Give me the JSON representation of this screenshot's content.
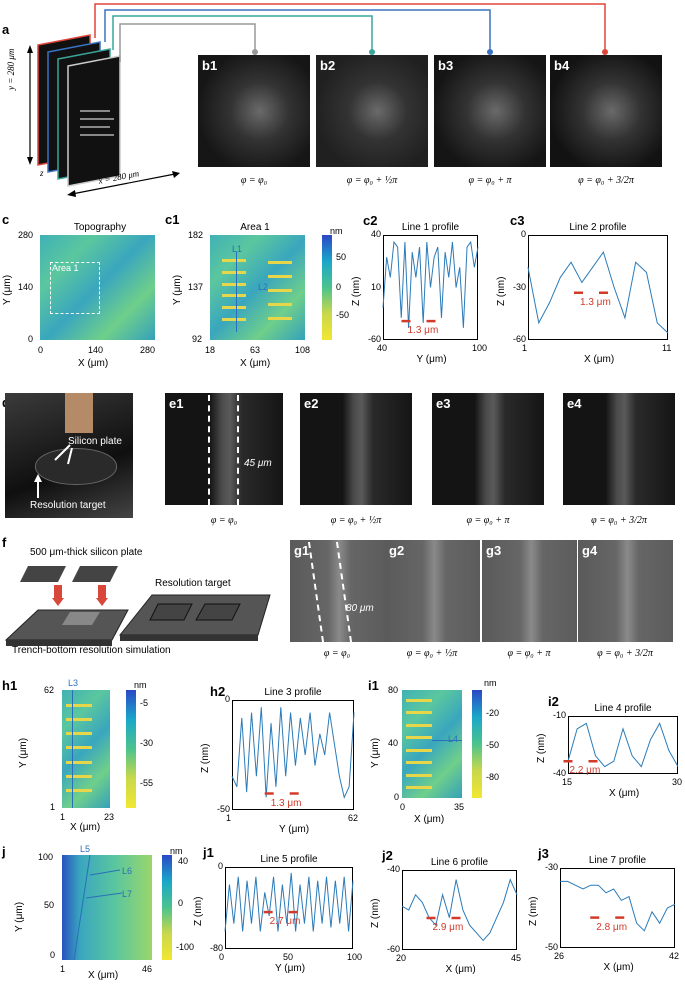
{
  "panels": {
    "a": {
      "label": "a",
      "y_dim": "y = 280 μm",
      "x_dim": "x = 280 μm",
      "z": "z"
    },
    "b": {
      "labels": [
        "b1",
        "b2",
        "b3",
        "b4"
      ],
      "captions": [
        "φ = φ₀",
        "φ = φ₀ + ½π",
        "φ = φ₀ + π",
        "φ = φ₀ + 3/2π"
      ]
    },
    "c": {
      "label": "c",
      "title": "Topography",
      "ylabel": "Y (μm)",
      "xlabel": "X (μm)",
      "yticks": [
        "280",
        "140",
        "0"
      ],
      "xticks": [
        "0",
        "140",
        "280"
      ],
      "area_label": "Area 1"
    },
    "c1": {
      "label": "c1",
      "title": "Area 1",
      "ylabel": "Y (μm)",
      "xlabel": "X (μm)",
      "yticks": [
        "182",
        "137",
        "92"
      ],
      "xticks": [
        "18",
        "63",
        "108"
      ],
      "cbar_unit": "nm",
      "cbar_ticks": [
        "50",
        "0",
        "-50"
      ],
      "l1": "L1",
      "l2": "L2"
    },
    "c2": {
      "label": "c2",
      "title": "Line 1 profile",
      "ylabel": "Z (nm)",
      "xlabel": "Y (μm)",
      "yticks": [
        "40",
        "10",
        "-60"
      ],
      "xticks": [
        "40",
        "100"
      ],
      "annot": "1.3 μm"
    },
    "c3": {
      "label": "c3",
      "title": "Line 2 profile",
      "ylabel": "Z (nm)",
      "xlabel": "X (μm)",
      "yticks": [
        "0",
        "-30",
        "-60"
      ],
      "xticks": [
        "1",
        "11"
      ],
      "annot": "1.3 μm"
    },
    "d": {
      "label": "d",
      "silicon": "Silicon plate",
      "target": "Resolution target"
    },
    "e": {
      "labels": [
        "e1",
        "e2",
        "e3",
        "e4"
      ],
      "width_annot": "45 μm",
      "captions": [
        "φ = φ₀",
        "φ = φ₀ + ½π",
        "φ = φ₀ + π",
        "φ = φ₀ + 3/2π"
      ]
    },
    "f": {
      "label": "f",
      "plate": "500 μm-thick silicon plate",
      "target": "Resolution target",
      "caption": "Trench-bottom resolution simulation"
    },
    "g": {
      "labels": [
        "g1",
        "g2",
        "g3",
        "g4"
      ],
      "width_annot": "80 μm",
      "captions": [
        "φ = φ₀",
        "φ = φ₀ + ½π",
        "φ = φ₀ + π",
        "φ = φ₀ + 3/2π"
      ]
    },
    "h1": {
      "label": "h1",
      "ylabel": "Y (μm)",
      "xlabel": "X (μm)",
      "yticks": [
        "62",
        "1"
      ],
      "xticks": [
        "1",
        "23"
      ],
      "cbar_unit": "nm",
      "cbar_ticks": [
        "-5",
        "-30",
        "-55"
      ],
      "line": "L3"
    },
    "h2": {
      "label": "h2",
      "title": "Line 3 profile",
      "ylabel": "Z (nm)",
      "xlabel": "Y (μm)",
      "yticks": [
        "0",
        "-50"
      ],
      "xticks": [
        "1",
        "62"
      ],
      "annot": "1.3 μm"
    },
    "i1": {
      "label": "i1",
      "ylabel": "Y (μm)",
      "xlabel": "X (μm)",
      "yticks": [
        "80",
        "40",
        "0"
      ],
      "xticks": [
        "0",
        "35"
      ],
      "cbar_unit": "nm",
      "cbar_ticks": [
        "-20",
        "-50",
        "-80"
      ],
      "line": "L4"
    },
    "i2": {
      "label": "i2",
      "title": "Line 4 profile",
      "ylabel": "Z (nm)",
      "xlabel": "X (μm)",
      "yticks": [
        "-10",
        "-40"
      ],
      "xticks": [
        "15",
        "30"
      ],
      "annot": "2.2 μm"
    },
    "j": {
      "label": "j",
      "ylabel": "Y (μm)",
      "xlabel": "X (μm)",
      "yticks": [
        "100",
        "50",
        "0"
      ],
      "xticks": [
        "1",
        "46"
      ],
      "cbar_unit": "nm",
      "cbar_ticks": [
        "40",
        "0",
        "-100"
      ],
      "l5": "L5",
      "l6": "L6",
      "l7": "L7"
    },
    "j1": {
      "label": "j1",
      "title": "Line 5 profile",
      "ylabel": "Z (nm)",
      "xlabel": "Y (μm)",
      "yticks": [
        "0",
        "-80"
      ],
      "xticks": [
        "0",
        "50",
        "100"
      ],
      "annot": "2.7 μm"
    },
    "j2": {
      "label": "j2",
      "title": "Line 6 profile",
      "ylabel": "Z (nm)",
      "xlabel": "X (μm)",
      "yticks": [
        "-40",
        "-60"
      ],
      "xticks": [
        "20",
        "45"
      ],
      "annot": "2.9 μm"
    },
    "j3": {
      "label": "j3",
      "title": "Line 7 profile",
      "ylabel": "Z (nm)",
      "xlabel": "X (μm)",
      "yticks": [
        "-30",
        "-50"
      ],
      "xticks": [
        "26",
        "42"
      ],
      "annot": "2.8 μm"
    }
  },
  "colors": {
    "profile": "#2b7bb9",
    "arrow": "#d23a2a",
    "frame_red": "#e0453a",
    "frame_blue": "#3a73c4",
    "frame_teal": "#3aa59b",
    "frame_gray": "#999999"
  }
}
